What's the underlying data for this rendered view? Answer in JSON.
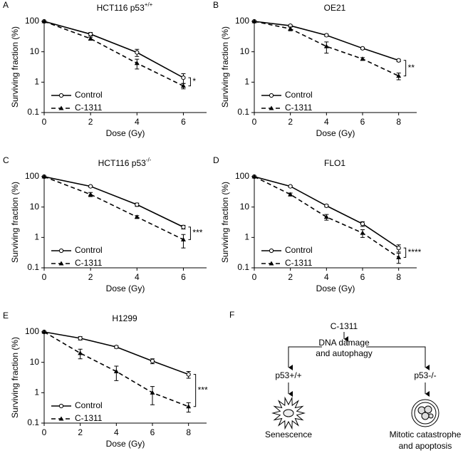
{
  "chart_data": [
    {
      "panel": "A",
      "type": "line",
      "title": "HCT116 p53",
      "title_superscript": "+/+",
      "x": [
        0,
        2,
        4,
        6
      ],
      "xlim": [
        0,
        7
      ],
      "xticks": [
        0,
        2,
        4,
        6
      ],
      "ylim": [
        0.1,
        100
      ],
      "yticks": [
        0.1,
        1,
        10,
        100
      ],
      "yscale": "log",
      "xlabel": "Dose (Gy)",
      "ylabel": "Surviving fraction (%)",
      "annotation": "*",
      "series": [
        {
          "name": "Control",
          "color": "#000000",
          "line_style": "solid",
          "marker": "circle",
          "values": [
            100,
            38,
            9.5,
            1.4
          ],
          "errors": [
            null,
            5,
            2.5,
            0.5
          ]
        },
        {
          "name": "C-1311",
          "color": "#000000",
          "line_style": "dashed",
          "marker": "triangle",
          "values": [
            100,
            27,
            4.2,
            0.75
          ],
          "errors": [
            null,
            3,
            1.5,
            0.15
          ]
        }
      ]
    },
    {
      "panel": "B",
      "type": "line",
      "title": "OE21",
      "x": [
        0,
        2,
        4,
        6,
        8
      ],
      "xlim": [
        0,
        9
      ],
      "xticks": [
        0,
        2,
        4,
        6,
        8
      ],
      "ylim": [
        0.1,
        100
      ],
      "yticks": [
        0.1,
        1,
        10,
        100
      ],
      "yscale": "log",
      "xlabel": "Dose (Gy)",
      "ylabel": "Surviving fraction (%)",
      "annotation": "**",
      "series": [
        {
          "name": "Control",
          "color": "#000000",
          "line_style": "solid",
          "marker": "circle",
          "values": [
            100,
            72,
            35,
            13,
            5.2
          ],
          "errors": [
            null,
            5,
            3,
            1,
            0.5
          ]
        },
        {
          "name": "C-1311",
          "color": "#000000",
          "line_style": "dashed",
          "marker": "triangle",
          "values": [
            100,
            57,
            15,
            5.8,
            1.6
          ],
          "errors": [
            null,
            8,
            6,
            0.6,
            0.4
          ]
        }
      ]
    },
    {
      "panel": "C",
      "type": "line",
      "title": "HCT116 p53",
      "title_superscript": "-/-",
      "x": [
        0,
        2,
        4,
        6
      ],
      "xlim": [
        0,
        7
      ],
      "xticks": [
        0,
        2,
        4,
        6
      ],
      "ylim": [
        0.1,
        100
      ],
      "yticks": [
        0.1,
        1,
        10,
        100
      ],
      "yscale": "log",
      "xlabel": "Dose (Gy)",
      "ylabel": "Surviving fraction (%)",
      "annotation": "***",
      "series": [
        {
          "name": "Control",
          "color": "#000000",
          "line_style": "solid",
          "marker": "circle",
          "values": [
            100,
            48,
            12,
            2.2
          ],
          "errors": [
            null,
            3,
            1.5,
            0.3
          ]
        },
        {
          "name": "C-1311",
          "color": "#000000",
          "line_style": "dashed",
          "marker": "triangle",
          "values": [
            100,
            26,
            4.7,
            0.85
          ],
          "errors": [
            null,
            4,
            0.5,
            0.4
          ]
        }
      ]
    },
    {
      "panel": "D",
      "type": "line",
      "title": "FLO1",
      "x": [
        0,
        2,
        4,
        6,
        8
      ],
      "xlim": [
        0,
        9
      ],
      "xticks": [
        0,
        2,
        4,
        6,
        8
      ],
      "ylim": [
        0.1,
        100
      ],
      "yticks": [
        0.1,
        1,
        10,
        100
      ],
      "yscale": "log",
      "xlabel": "Dose (Gy)",
      "ylabel": "Surviving fraction (%)",
      "annotation": "****",
      "series": [
        {
          "name": "Control",
          "color": "#000000",
          "line_style": "solid",
          "marker": "circle",
          "values": [
            100,
            48,
            11,
            2.8,
            0.45
          ],
          "errors": [
            null,
            3,
            1,
            0.5,
            0.12
          ]
        },
        {
          "name": "C-1311",
          "color": "#000000",
          "line_style": "dashed",
          "marker": "triangle",
          "values": [
            100,
            26,
            4.7,
            1.4,
            0.22
          ],
          "errors": [
            null,
            3,
            1,
            0.4,
            0.08
          ]
        }
      ]
    },
    {
      "panel": "E",
      "type": "line",
      "title": "H1299",
      "x": [
        0,
        2,
        4,
        6,
        8
      ],
      "xlim": [
        0,
        9
      ],
      "xticks": [
        0,
        2,
        4,
        6,
        8
      ],
      "ylim": [
        0.1,
        100
      ],
      "yticks": [
        0.1,
        1,
        10,
        100
      ],
      "yscale": "log",
      "xlabel": "Dose (Gy)",
      "ylabel": "Surviving fraction (%)",
      "annotation": "***",
      "series": [
        {
          "name": "Control",
          "color": "#000000",
          "line_style": "solid",
          "marker": "circle",
          "values": [
            100,
            62,
            32,
            11,
            4
          ],
          "errors": [
            null,
            8,
            3,
            2,
            1
          ]
        },
        {
          "name": "C-1311",
          "color": "#000000",
          "line_style": "dashed",
          "marker": "triangle",
          "values": [
            100,
            20,
            5,
            1.0,
            0.35
          ],
          "errors": [
            null,
            7,
            2.5,
            0.6,
            0.12
          ]
        }
      ]
    }
  ],
  "diagram": {
    "panel": "F",
    "drug": "C-1311",
    "process": [
      "DNA damage",
      "and autophagy"
    ],
    "left": {
      "label": "p53+/+",
      "outcome": [
        "Senescence"
      ]
    },
    "right": {
      "label": "p53-/-",
      "outcome": [
        "Mitotic catastrophe",
        "and apoptosis"
      ]
    }
  }
}
